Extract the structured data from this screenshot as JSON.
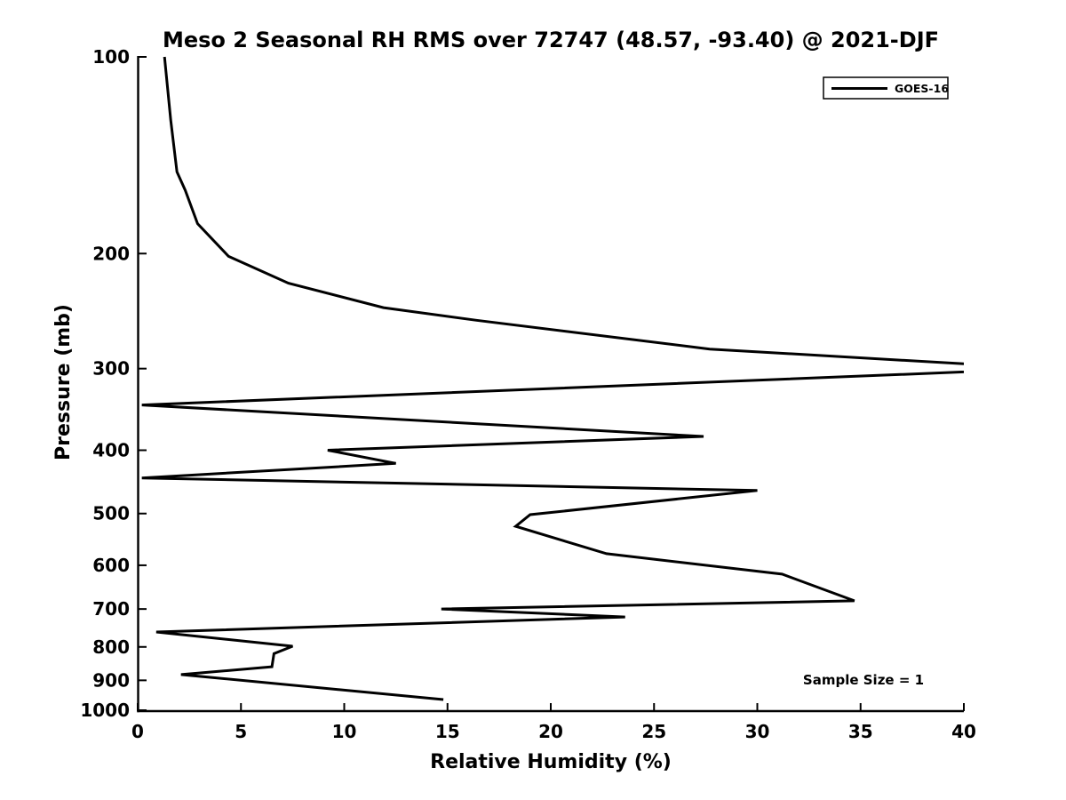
{
  "figure": {
    "title": "Meso 2 Seasonal RH RMS over 72747 (48.57, -93.40) @ 2021-DJF",
    "x_axis_label": "Relative Humidity (%)",
    "y_axis_label": "Pressure (mb)",
    "annotation": "Sample Size = 1",
    "legend_label": "GOES-16",
    "line_color": "#000000",
    "background_color": "#ffffff"
  },
  "chart_data": {
    "type": "line",
    "title": "Meso 2 Seasonal RH RMS over 72747 (48.57, -93.40) @ 2021-DJF",
    "xlabel": "Relative Humidity (%)",
    "ylabel": "Pressure (mb)",
    "x_axis": {
      "min": 0,
      "max": 40,
      "ticks": [
        0,
        5,
        10,
        15,
        20,
        25,
        30,
        35,
        40
      ]
    },
    "y_axis": {
      "min": 100,
      "max": 1005,
      "scale": "log",
      "inverted": true,
      "ticks": [
        100,
        200,
        300,
        400,
        500,
        600,
        700,
        800,
        900,
        1000
      ]
    },
    "grid": false,
    "legend_position": "upper right",
    "annotations": [
      {
        "text": "Sample Size = 1"
      }
    ],
    "series": [
      {
        "name": "GOES-16",
        "color": "#000000",
        "x_unit": "percent_rh",
        "y_unit": "mb",
        "points_rh_mb": [
          [
            1.3,
            100
          ],
          [
            1.6,
            125
          ],
          [
            1.9,
            150
          ],
          [
            2.3,
            160
          ],
          [
            2.9,
            180
          ],
          [
            4.4,
            202
          ],
          [
            7.3,
            222
          ],
          [
            11.9,
            242
          ],
          [
            16.4,
            253
          ],
          [
            27.7,
            280
          ],
          [
            44.0,
            300
          ],
          [
            0.2,
            341
          ],
          [
            27.4,
            381
          ],
          [
            9.2,
            400
          ],
          [
            12.5,
            419
          ],
          [
            0.2,
            441
          ],
          [
            30.0,
            461
          ],
          [
            19.0,
            502
          ],
          [
            18.3,
            523
          ],
          [
            22.7,
            576
          ],
          [
            31.2,
            619
          ],
          [
            34.7,
            680
          ],
          [
            14.7,
            700
          ],
          [
            23.6,
            720
          ],
          [
            0.9,
            759
          ],
          [
            7.5,
            798
          ],
          [
            6.6,
            819
          ],
          [
            6.5,
            858
          ],
          [
            2.1,
            882
          ],
          [
            14.8,
            963
          ]
        ],
        "note": "value at 300 mb exceeds x-axis max (clipped at 40)"
      }
    ]
  }
}
